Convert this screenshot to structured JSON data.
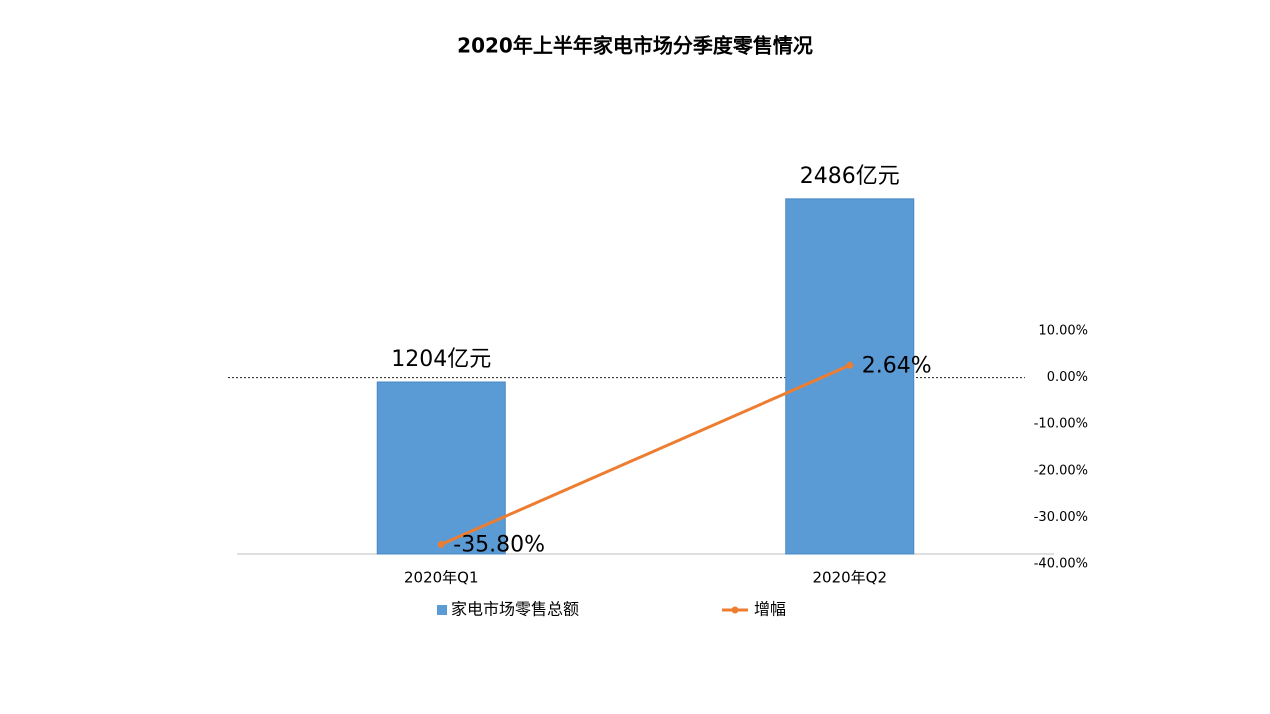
{
  "chart_data": {
    "type": "bar-line",
    "title": "2020年上半年家电市场分季度零售情况",
    "categories": [
      "2020年Q1",
      "2020年Q2"
    ],
    "ylim": [
      0,
      3000
    ],
    "y2lim": [
      -40,
      10
    ],
    "y2ticks": [
      {
        "value": 10,
        "label": "10.00%"
      },
      {
        "value": 0,
        "label": "0.00%"
      },
      {
        "value": -10,
        "label": "-10.00%"
      },
      {
        "value": -20,
        "label": "-20.00%"
      },
      {
        "value": -30,
        "label": "-30.00%"
      },
      {
        "value": -40,
        "label": "-40.00%"
      }
    ],
    "legend": "bottom",
    "series": [
      {
        "name": "家电市场零售总额",
        "type": "bar",
        "color": "#5b9bd5",
        "values": [
          1204,
          2486
        ],
        "value_labels": [
          "1204亿元",
          "2486亿元"
        ]
      },
      {
        "name": "增幅",
        "type": "line",
        "axis": "y2",
        "color": "#ed7d31",
        "values": [
          -35.8,
          2.64
        ],
        "value_labels": [
          "-35.80%",
          "2.64%"
        ]
      }
    ]
  }
}
